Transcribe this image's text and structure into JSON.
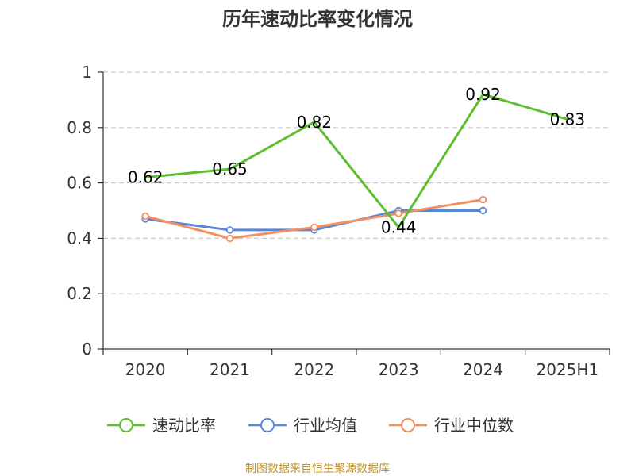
{
  "chart_data": {
    "type": "line",
    "title": "历年速动比率变化情况",
    "categories": [
      "2020",
      "2021",
      "2022",
      "2023",
      "2024",
      "2025H1"
    ],
    "ylim": [
      0,
      1
    ],
    "yticks": [
      "0",
      "0.2",
      "0.4",
      "0.6",
      "0.8",
      "1"
    ],
    "ytick_values": [
      0,
      0.2,
      0.4,
      0.6,
      0.8,
      1
    ],
    "grid": true,
    "legend_position": "bottom",
    "series": [
      {
        "name": "速动比率",
        "color": "#5cbf2e",
        "marker": false,
        "values": [
          0.62,
          0.65,
          0.82,
          0.44,
          0.92,
          0.83
        ],
        "labels": [
          "0.62",
          "0.65",
          "0.82",
          "0.44",
          "0.92",
          "0.83"
        ]
      },
      {
        "name": "行业均值",
        "color": "#5b86d6",
        "marker": true,
        "values": [
          0.47,
          0.43,
          0.43,
          0.5,
          0.5,
          null
        ]
      },
      {
        "name": "行业中位数",
        "color": "#f4905f",
        "marker": true,
        "values": [
          0.48,
          0.4,
          0.44,
          0.49,
          0.54,
          null
        ]
      }
    ],
    "source": "制图数据来自恒生聚源数据库"
  }
}
